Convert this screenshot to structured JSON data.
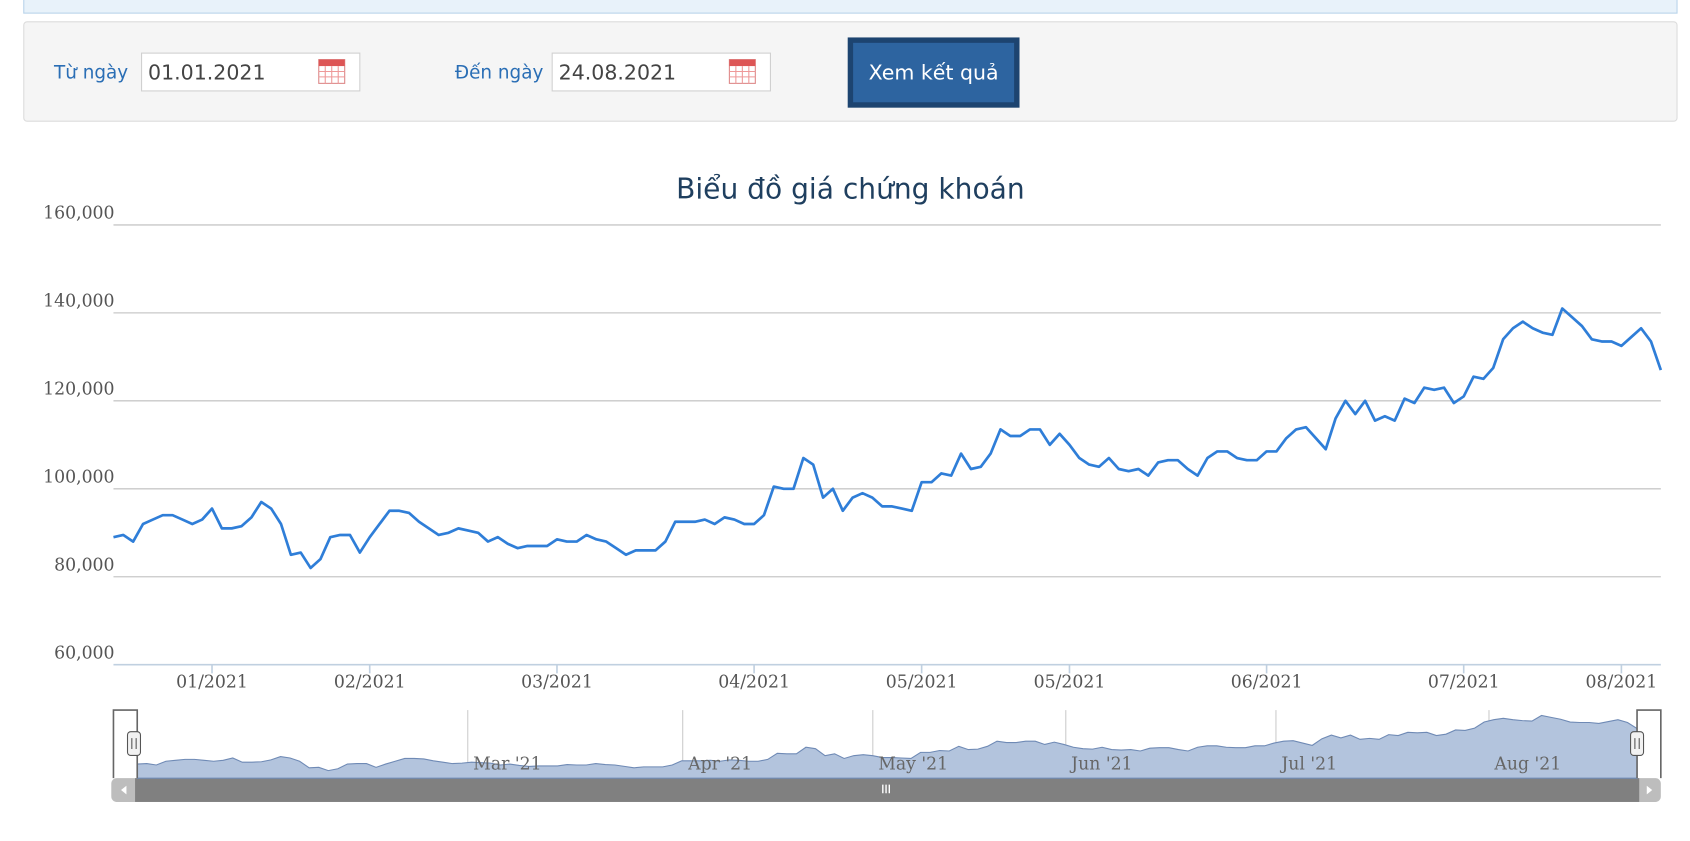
{
  "form": {
    "from_label": "Từ ngày",
    "from_value": "01.01.2021",
    "to_label": "Đến ngày",
    "to_value": "24.08.2021",
    "button": "Xem kết quả"
  },
  "chart_data": {
    "type": "line",
    "title": "Biểu đồ giá chứng khoán",
    "color": "#2f7ed8",
    "grid": true,
    "ylim": [
      60000,
      160000
    ],
    "yticks": [
      {
        "value": 60000,
        "label": "60,000"
      },
      {
        "value": 80000,
        "label": "80,000"
      },
      {
        "value": 100000,
        "label": "100,000"
      },
      {
        "value": 120000,
        "label": "120,000"
      },
      {
        "value": 140000,
        "label": "140,000"
      },
      {
        "value": 160000,
        "label": "160,000"
      }
    ],
    "categories": [
      null,
      null,
      null,
      null,
      null,
      null,
      null,
      null,
      null,
      null,
      "01/2021",
      null,
      null,
      null,
      null,
      null,
      null,
      null,
      null,
      null,
      null,
      null,
      null,
      null,
      null,
      null,
      "02/2021",
      null,
      null,
      null,
      null,
      null,
      null,
      null,
      null,
      null,
      null,
      null,
      null,
      null,
      null,
      null,
      null,
      null,
      null,
      "03/2021",
      null,
      null,
      null,
      null,
      null,
      null,
      null,
      null,
      null,
      null,
      null,
      null,
      null,
      null,
      null,
      null,
      null,
      null,
      null,
      "04/2021",
      null,
      null,
      null,
      null,
      null,
      null,
      null,
      null,
      null,
      null,
      null,
      null,
      null,
      null,
      null,
      null,
      "05/2021",
      null,
      null,
      null,
      null,
      null,
      null,
      null,
      null,
      null,
      null,
      null,
      null,
      null,
      null,
      "05/2021",
      null,
      null,
      null,
      null,
      null,
      null,
      null,
      null,
      null,
      null,
      null,
      null,
      null,
      null,
      null,
      null,
      null,
      null,
      null,
      "06/2021",
      null,
      null,
      null,
      null,
      null,
      null,
      null,
      null,
      null,
      null,
      null,
      null,
      null,
      null,
      null,
      null,
      null,
      null,
      null,
      "07/2021",
      null,
      null,
      null,
      null,
      null,
      null,
      null,
      null,
      null,
      null,
      null,
      null,
      null,
      null,
      null,
      "08/2021",
      null,
      null,
      null,
      null
    ],
    "values": [
      89000,
      89500,
      88000,
      92000,
      93000,
      94000,
      94000,
      93000,
      92000,
      93000,
      95500,
      91000,
      91000,
      91500,
      93500,
      97000,
      95500,
      92000,
      85000,
      85500,
      82000,
      84000,
      89000,
      89500,
      89500,
      85500,
      89000,
      92000,
      95000,
      95000,
      94500,
      92500,
      91000,
      89500,
      90000,
      91000,
      90500,
      90000,
      88000,
      89000,
      87500,
      86500,
      87000,
      87000,
      87000,
      88500,
      88000,
      88000,
      89500,
      88500,
      88000,
      86500,
      85000,
      86000,
      86000,
      86000,
      88000,
      92500,
      92500,
      92500,
      93000,
      92000,
      93500,
      93000,
      92000,
      92000,
      94000,
      100500,
      100000,
      100000,
      107000,
      105500,
      98000,
      100000,
      95000,
      98000,
      99000,
      98000,
      96000,
      96000,
      95500,
      95000,
      101500,
      101500,
      103500,
      103000,
      108000,
      104500,
      105000,
      108000,
      113500,
      112000,
      112000,
      113500,
      113500,
      110000,
      112500,
      110000,
      107000,
      105500,
      105000,
      107000,
      104500,
      104000,
      104500,
      103000,
      106000,
      106500,
      106500,
      104500,
      103000,
      107000,
      108500,
      108500,
      107000,
      106500,
      106500,
      108500,
      108500,
      111500,
      113500,
      114000,
      111500,
      109000,
      116000,
      120000,
      117000,
      120000,
      115500,
      116500,
      115500,
      120500,
      119500,
      123000,
      122500,
      123000,
      119500,
      121000,
      125500,
      125000,
      127500,
      134000,
      136500,
      138000,
      136500,
      135500,
      135000,
      141000,
      139000,
      137000,
      134000,
      133500,
      133500,
      132500,
      134500,
      136500,
      133500,
      127000
    ],
    "navigator": {
      "color": "#b3c4dd",
      "ticks": [
        {
          "value": 34.6,
          "label": "Mar '21"
        },
        {
          "value": 57.1,
          "label": "Apr '21"
        },
        {
          "value": 77.0,
          "label": "May '21"
        },
        {
          "value": 97.2,
          "label": "Jun '21"
        },
        {
          "value": 119.2,
          "label": "Jul '21"
        },
        {
          "value": 141.5,
          "label": "Aug '21"
        }
      ]
    }
  }
}
